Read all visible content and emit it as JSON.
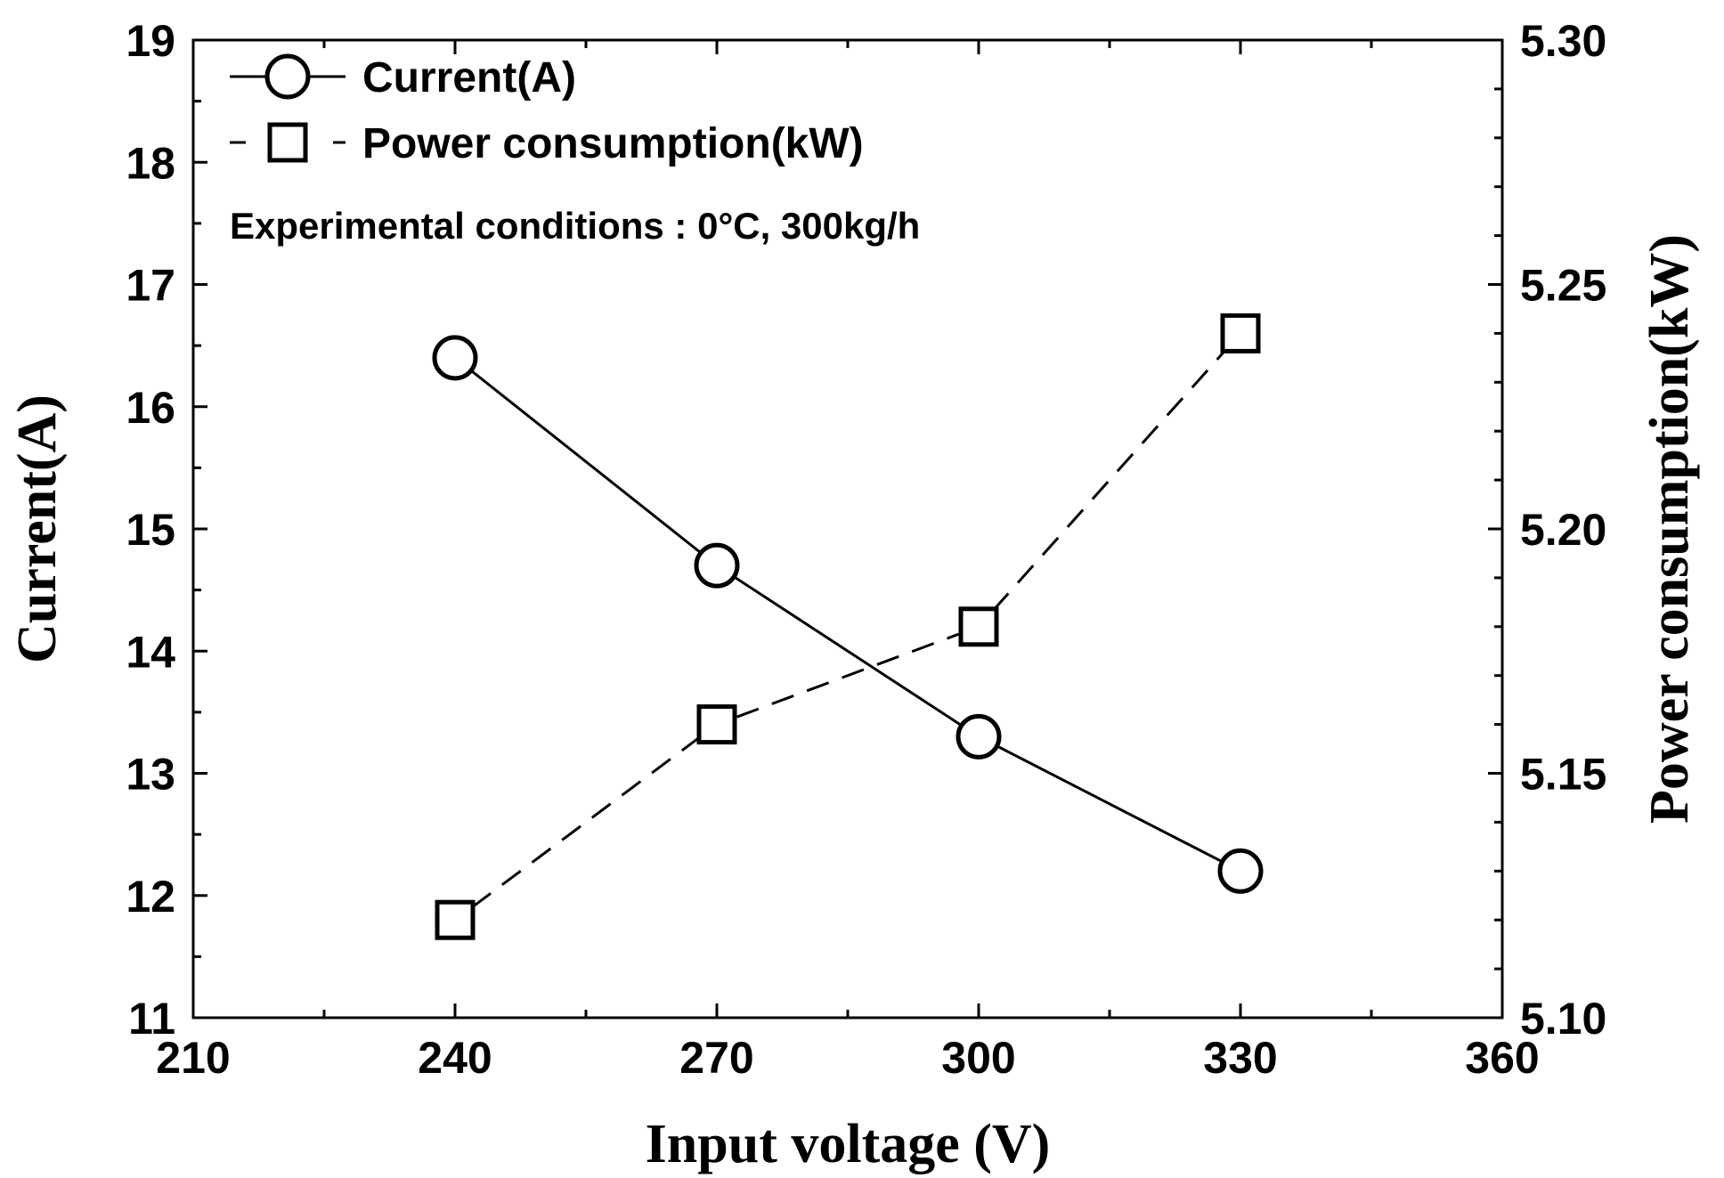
{
  "chart_data": {
    "type": "line",
    "x": [
      240,
      270,
      300,
      330
    ],
    "xlabel": "Input voltage (V)",
    "ylabel": "Current(A)",
    "ylabel_right": "Power consumption(kW)",
    "xlim": [
      210,
      360
    ],
    "ylim": [
      11,
      19
    ],
    "ylim_right": [
      5.1,
      5.3
    ],
    "x_ticks": [
      "210",
      "240",
      "270",
      "300",
      "330",
      "360"
    ],
    "y_ticks": [
      "11",
      "12",
      "13",
      "14",
      "15",
      "16",
      "17",
      "18",
      "19"
    ],
    "y_ticks_right": [
      "5.10",
      "5.15",
      "5.20",
      "5.25",
      "5.30"
    ],
    "grid": false,
    "legend_position": "top-left",
    "series": [
      {
        "name": "Current(A)",
        "axis": "left",
        "marker": "circle",
        "line": "solid",
        "values": [
          16.4,
          14.7,
          13.3,
          12.2
        ]
      },
      {
        "name": "Power consumption(kW)",
        "axis": "right",
        "marker": "square",
        "line": "dashed",
        "values": [
          5.12,
          5.16,
          5.18,
          5.24
        ]
      }
    ],
    "annotation": "Experimental conditions :  0°C, 300kg/h"
  }
}
